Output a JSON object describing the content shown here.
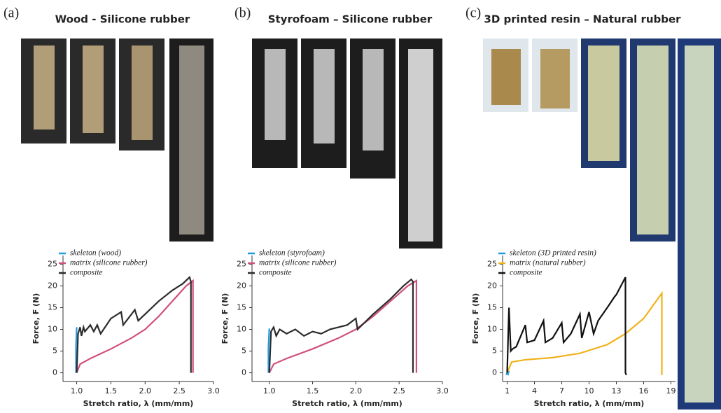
{
  "chart_data": [
    {
      "type": "line",
      "panel": "(a)",
      "title": "Wood - Silicone rubber",
      "xlabel": "Stretch ratio, λ (mm/mm)",
      "ylabel": "Force, F (N)",
      "xlim": [
        0.8,
        3.0
      ],
      "ylim": [
        -2,
        27
      ],
      "xticks": [
        {
          "value": 1,
          "label": "1.0"
        },
        1.5,
        {
          "value": 2,
          "label": "2.0"
        },
        2.5,
        {
          "value": 3,
          "label": "3.0"
        }
      ],
      "yticks": [
        0,
        5,
        10,
        15,
        20,
        25
      ],
      "series": [
        {
          "name": "skeleton (wood)",
          "color": "#1f9be0",
          "x": [
            0.99,
            0.99,
            1.0
          ],
          "values": [
            0,
            6,
            10.5
          ]
        },
        {
          "name": "matrix (silicone rubber)",
          "color": "#d14f7c",
          "x": [
            1.0,
            1.05,
            1.2,
            1.5,
            1.8,
            2.0,
            2.2,
            2.4,
            2.6,
            2.7,
            2.7
          ],
          "values": [
            0,
            2,
            3.3,
            5.5,
            8,
            10,
            13,
            16.5,
            20,
            21.2,
            0
          ]
        },
        {
          "name": "composite",
          "color": "#2b2b2b",
          "x": [
            1.0,
            1.02,
            1.05,
            1.07,
            1.1,
            1.12,
            1.2,
            1.25,
            1.3,
            1.35,
            1.5,
            1.65,
            1.68,
            1.85,
            1.9,
            2.2,
            2.4,
            2.55,
            2.65,
            2.67,
            2.67
          ],
          "values": [
            0,
            9,
            10.5,
            8.5,
            10.5,
            9.5,
            11,
            9.5,
            11,
            9,
            12.5,
            14,
            11,
            14.5,
            12,
            16.5,
            19,
            20.5,
            22,
            21,
            0
          ]
        }
      ]
    },
    {
      "type": "line",
      "panel": "(b)",
      "title": "Styrofoam – Silicone rubber",
      "xlabel": "Stretch ratio, λ (mm/mm)",
      "ylabel": "Force, F (N)",
      "xlim": [
        0.8,
        3.0
      ],
      "ylim": [
        -2,
        27
      ],
      "xticks": [
        {
          "value": 1,
          "label": "1.0"
        },
        1.5,
        {
          "value": 2,
          "label": "2.0"
        },
        2.5,
        {
          "value": 3,
          "label": "3.0"
        }
      ],
      "yticks": [
        0,
        5,
        10,
        15,
        20,
        25
      ],
      "series": [
        {
          "name": "skeleton (styrofoam)",
          "color": "#1f9be0",
          "x": [
            0.99,
            0.99,
            1.0
          ],
          "values": [
            0,
            6,
            10.2
          ]
        },
        {
          "name": "matrix (silicone rubber)",
          "color": "#d14f7c",
          "x": [
            1.0,
            1.05,
            1.2,
            1.5,
            1.8,
            2.0,
            2.2,
            2.4,
            2.6,
            2.7,
            2.7
          ],
          "values": [
            0,
            2,
            3.3,
            5.5,
            8,
            10,
            13,
            16.5,
            20,
            21.2,
            0
          ]
        },
        {
          "name": "composite",
          "color": "#2b2b2b",
          "x": [
            1.0,
            1.02,
            1.05,
            1.08,
            1.12,
            1.2,
            1.3,
            1.4,
            1.5,
            1.6,
            1.7,
            1.8,
            1.9,
            2.0,
            2.02,
            2.2,
            2.4,
            2.55,
            2.64,
            2.66,
            2.66
          ],
          "values": [
            0,
            9.5,
            10.5,
            8.5,
            10,
            9,
            10,
            8.5,
            9.5,
            9,
            10,
            10.5,
            11,
            12.5,
            10,
            13.5,
            17,
            20,
            21.5,
            21,
            0
          ]
        }
      ]
    },
    {
      "type": "line",
      "panel": "(c)",
      "title": "3D printed resin – Natural rubber",
      "xlabel": "Stretch ratio, λ (mm/mm)",
      "ylabel": "Force, F (N)",
      "xlim": [
        0.5,
        19.5
      ],
      "ylim": [
        -2,
        27
      ],
      "xticks": [
        1,
        4,
        7,
        10,
        13,
        16,
        19
      ],
      "yticks": [
        0,
        5,
        10,
        15,
        20,
        25
      ],
      "series": [
        {
          "name": "skeleton (3D printed resin)",
          "color": "#1f9be0",
          "x": [
            0.9,
            1.0,
            1.1,
            1.2
          ],
          "values": [
            -0.5,
            0,
            -0.3,
            0.5
          ]
        },
        {
          "name": "matrix (natural rubber)",
          "color": "#f0b21a",
          "x": [
            1,
            1.5,
            3,
            6,
            9,
            12,
            14,
            16,
            18,
            18,
            18
          ],
          "values": [
            0,
            2.5,
            3,
            3.5,
            4.5,
            6.5,
            9,
            12.5,
            18.3,
            10,
            -0.5
          ]
        },
        {
          "name": "composite",
          "color": "#111111",
          "x": [
            1,
            1.2,
            1.4,
            1.6,
            2,
            3,
            3.2,
            4,
            5,
            5.2,
            6,
            7,
            7.2,
            8,
            9,
            9.2,
            10,
            10.5,
            11,
            12,
            12.8,
            13,
            14,
            14,
            14.1
          ],
          "values": [
            0,
            15,
            5,
            5.5,
            6,
            11,
            7,
            7.5,
            12,
            7,
            8,
            11.5,
            7,
            9,
            13.5,
            8,
            14,
            9,
            12,
            15,
            17.5,
            18,
            22,
            0,
            -0.5
          ]
        }
      ]
    }
  ]
}
